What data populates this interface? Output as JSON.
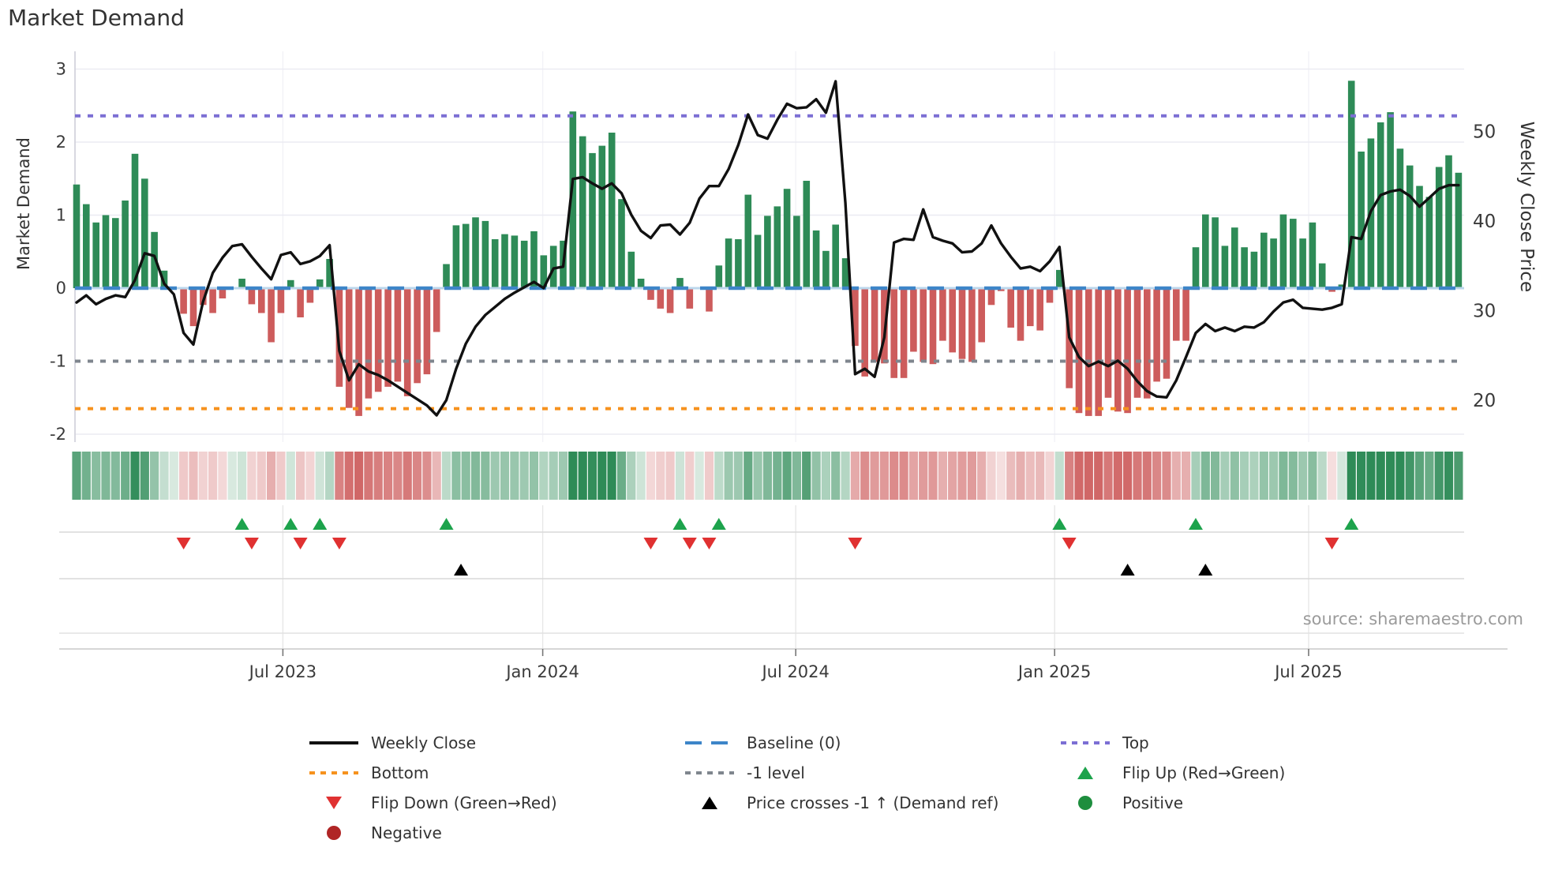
{
  "title": "Market Demand",
  "source": "source: sharemaestro.com",
  "axes": {
    "left_label": "Market Demand",
    "right_label": "Weekly Close Price",
    "left_ticks": [
      3,
      2,
      1,
      0,
      -1,
      -2
    ],
    "right_ticks": [
      50,
      40,
      30,
      20
    ],
    "x_ticks": [
      {
        "label": "Jul 2023",
        "week": 21.2
      },
      {
        "label": "Jan 2024",
        "week": 47.9
      },
      {
        "label": "Jul 2024",
        "week": 73.9
      },
      {
        "label": "Jan 2025",
        "week": 100.5
      },
      {
        "label": "Jul 2025",
        "week": 126.6
      }
    ]
  },
  "chart_data": {
    "type": "bar",
    "note": "weekly data, Feb 2023 - Oct 2025; demand bars on left axis, weekly close line on right axis",
    "n_weeks": 143,
    "ylim_demand": [
      -2,
      3
    ],
    "ylim_price": [
      20,
      50
    ],
    "reference_lines": {
      "top": 2.36,
      "baseline": 0.0,
      "minus_one": -1.0,
      "bottom": -1.65
    },
    "series": [
      {
        "name": "Market Demand",
        "type": "bar",
        "values": [
          1.42,
          1.15,
          0.9,
          1.0,
          0.96,
          1.2,
          1.84,
          1.5,
          0.77,
          0.24,
          0.02,
          -0.35,
          -0.52,
          -0.23,
          -0.34,
          -0.14,
          0.02,
          0.13,
          -0.22,
          -0.34,
          -0.74,
          -0.34,
          0.11,
          -0.4,
          -0.2,
          0.12,
          0.4,
          -1.35,
          -1.64,
          -1.75,
          -1.51,
          -1.42,
          -1.35,
          -1.28,
          -1.48,
          -1.3,
          -1.18,
          -0.6,
          0.33,
          0.86,
          0.88,
          0.97,
          0.92,
          0.67,
          0.74,
          0.72,
          0.65,
          0.78,
          0.45,
          0.58,
          0.65,
          2.42,
          2.08,
          1.85,
          1.95,
          2.13,
          1.22,
          0.5,
          0.13,
          -0.16,
          -0.28,
          -0.34,
          0.14,
          -0.28,
          0.02,
          -0.32,
          0.31,
          0.68,
          0.67,
          1.28,
          0.73,
          0.99,
          1.12,
          1.36,
          0.99,
          1.47,
          0.79,
          0.51,
          0.87,
          0.41,
          -0.79,
          -1.21,
          -1.01,
          -1.03,
          -1.23,
          -1.23,
          -0.87,
          -1.01,
          -1.04,
          -0.72,
          -0.88,
          -0.97,
          -1.01,
          -0.74,
          -0.23,
          -0.04,
          -0.54,
          -0.72,
          -0.52,
          -0.58,
          -0.2,
          0.25,
          -1.37,
          -1.71,
          -1.75,
          -1.75,
          -1.5,
          -1.69,
          -1.71,
          -1.5,
          -1.51,
          -1.28,
          -1.24,
          -0.72,
          -0.72,
          0.56,
          1.01,
          0.97,
          0.58,
          0.83,
          0.56,
          0.5,
          0.76,
          0.68,
          1.01,
          0.95,
          0.68,
          0.9,
          0.34,
          -0.05,
          0.05,
          2.84,
          1.87,
          2.05,
          2.27,
          2.41,
          1.91,
          1.68,
          1.4,
          1.25,
          1.66,
          1.82,
          1.58
        ]
      },
      {
        "name": "Weekly Close",
        "type": "line",
        "values": [
          30.9,
          31.7,
          30.7,
          31.3,
          31.7,
          31.5,
          33.4,
          36.4,
          36.1,
          33.0,
          31.8,
          27.5,
          26.2,
          31.0,
          34.2,
          35.9,
          37.2,
          37.4,
          36.0,
          34.7,
          33.5,
          36.2,
          36.5,
          35.2,
          35.5,
          36.1,
          37.3,
          25.5,
          22.2,
          24.0,
          23.2,
          22.8,
          22.2,
          21.5,
          20.8,
          20.1,
          19.4,
          18.3,
          20.0,
          23.5,
          26.3,
          28.2,
          29.5,
          30.4,
          31.3,
          32.0,
          32.6,
          33.2,
          32.5,
          34.7,
          34.9,
          44.7,
          44.9,
          44.2,
          43.6,
          44.2,
          43.1,
          40.7,
          38.9,
          38.1,
          39.5,
          39.6,
          38.5,
          39.8,
          42.5,
          43.9,
          43.9,
          45.8,
          48.5,
          51.9,
          49.6,
          49.2,
          51.3,
          53.1,
          52.6,
          52.7,
          53.6,
          52.1,
          55.6,
          42.0,
          22.9,
          23.5,
          22.6,
          27.0,
          37.6,
          38.0,
          37.9,
          41.3,
          38.2,
          37.8,
          37.5,
          36.5,
          36.6,
          37.5,
          39.5,
          37.5,
          36.0,
          34.7,
          34.9,
          34.4,
          35.5,
          37.1,
          27.0,
          24.8,
          23.8,
          24.3,
          23.8,
          24.4,
          23.5,
          22.1,
          21.0,
          20.4,
          20.3,
          22.2,
          24.8,
          27.5,
          28.5,
          27.7,
          28.1,
          27.7,
          28.2,
          28.1,
          28.7,
          29.9,
          30.9,
          31.2,
          30.3,
          30.2,
          30.1,
          30.3,
          30.7,
          38.2,
          38.0,
          41.1,
          42.9,
          43.3,
          43.5,
          42.8,
          41.6,
          42.6,
          43.6,
          44.0,
          44.0
        ]
      }
    ],
    "markers": {
      "flip_up_weeks": [
        17,
        22,
        25,
        38,
        62,
        66,
        101,
        115,
        131
      ],
      "flip_down_weeks": [
        11,
        18,
        23,
        27,
        59,
        63,
        65,
        80,
        102,
        129
      ],
      "price_cross_weeks": [
        39.5,
        108,
        116
      ]
    },
    "legend_position": "bottom"
  },
  "legend": {
    "items": [
      {
        "icon": "line",
        "color": "#111111",
        "label": "Weekly Close",
        "row": 0,
        "col": 0
      },
      {
        "icon": "dash",
        "color": "#3d85c8",
        "label": "Baseline (0)",
        "row": 0,
        "col": 1
      },
      {
        "icon": "dot",
        "color": "#7c6fd4",
        "label": "Top",
        "row": 0,
        "col": 2
      },
      {
        "icon": "dot",
        "color": "#f6921e",
        "label": "Bottom",
        "row": 1,
        "col": 0
      },
      {
        "icon": "dot",
        "color": "#7f868e",
        "label": "-1 level",
        "row": 1,
        "col": 1
      },
      {
        "icon": "tri-up",
        "color": "#1da34c",
        "label": "Flip Up (Red→Green)",
        "row": 1,
        "col": 2
      },
      {
        "icon": "tri-down",
        "color": "#e03131",
        "label": "Flip Down (Green→Red)",
        "row": 2,
        "col": 0
      },
      {
        "icon": "tri-up",
        "color": "#000000",
        "label": "Price crosses -1 ↑ (Demand ref)",
        "row": 2,
        "col": 1
      },
      {
        "icon": "circle",
        "color": "#1e8e3e",
        "label": "Positive",
        "row": 2,
        "col": 2
      },
      {
        "icon": "circle",
        "color": "#b02525",
        "label": "Negative",
        "row": 3,
        "col": 0
      }
    ]
  },
  "colors": {
    "bar_positive": "#2e8b57",
    "bar_negative": "#cd5c5c",
    "price_line": "#111111",
    "baseline": "#3d85c8",
    "baseline_light": "#a9cdе8",
    "top_line": "#7c6fd4",
    "bottom_line": "#f6921e",
    "minus_one_line": "#7f868e",
    "flip_up": "#1da34c",
    "flip_down": "#e03131",
    "price_cross": "#000000",
    "grid": "#ebebf2",
    "tick_text": "#3a3a3a"
  }
}
